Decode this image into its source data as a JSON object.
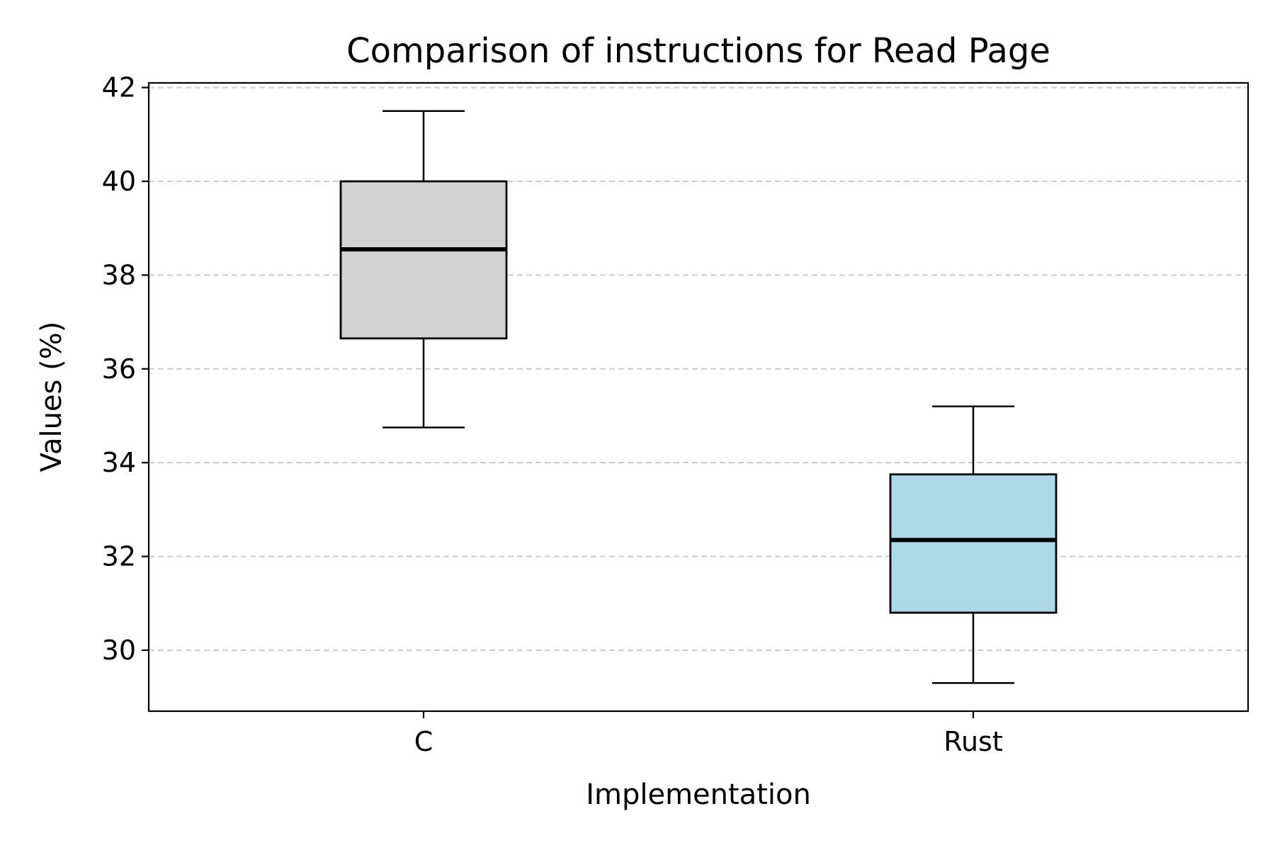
{
  "chart_data": {
    "type": "box",
    "title": "Comparison of instructions for Read Page",
    "xlabel": "Implementation",
    "ylabel": "Values (%)",
    "categories": [
      "C",
      "Rust"
    ],
    "ylim": [
      28.7,
      42.1
    ],
    "yticks": [
      30,
      32,
      34,
      36,
      38,
      40,
      42
    ],
    "grid": "y-dashed",
    "series": [
      {
        "category": "C",
        "whisker_low": 34.75,
        "q1": 36.65,
        "median": 38.55,
        "q3": 40.0,
        "whisker_high": 41.5,
        "color": "#d3d3d3"
      },
      {
        "category": "Rust",
        "whisker_low": 29.3,
        "q1": 30.8,
        "median": 32.35,
        "q3": 33.75,
        "whisker_high": 35.2,
        "color": "#add8e6"
      }
    ]
  }
}
